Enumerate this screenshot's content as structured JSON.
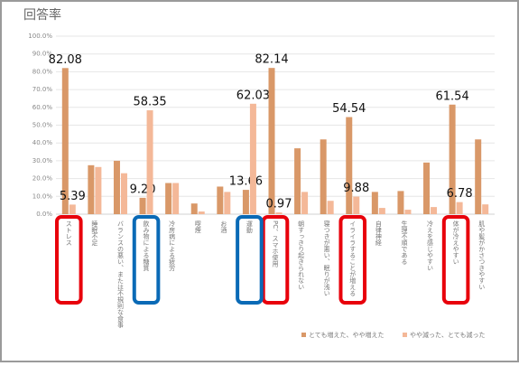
{
  "chart_data": {
    "type": "bar",
    "title": "回答率",
    "categories": [
      "ストレス",
      "睡眠不足",
      "バランスの悪い、または不規則な食事",
      "飲み物による糖質",
      "冷房病による疲労",
      "喫煙",
      "お酒",
      "運動",
      "PC、スマホ使用",
      "朝すっきり起きられない",
      "寝つきが悪い、眠りが浅い",
      "イライラすることが増える",
      "自律神経",
      "生理不順である",
      "冷えを感じやすい",
      "体が冷えやすい",
      "肌や髪がかさつきやすい"
    ],
    "series": [
      {
        "name": "とても増えた、やや増えた",
        "color": "#d99868",
        "values": [
          82.08,
          27.5,
          30,
          9.2,
          17.5,
          6,
          15.5,
          13.66,
          82.14,
          37,
          42,
          54.54,
          12.5,
          13,
          29,
          61.54,
          42
        ],
        "value_labels": [
          "82.08",
          null,
          null,
          "9.20",
          null,
          null,
          null,
          "13.66",
          "82.14",
          null,
          null,
          "54.54",
          null,
          null,
          null,
          "61.54",
          null
        ]
      },
      {
        "name": "やや減った、とても減った",
        "color": "#f4b898",
        "values": [
          5.39,
          26.5,
          23,
          58.35,
          17.5,
          1.5,
          12.5,
          62.03,
          0.97,
          12.5,
          7.5,
          9.88,
          3.5,
          2.5,
          4,
          6.78,
          5.5
        ],
        "value_labels": [
          "5.39",
          null,
          null,
          "58.35",
          null,
          null,
          null,
          "62.03",
          "0.97",
          null,
          null,
          "9.88",
          null,
          null,
          null,
          "6.78",
          null
        ]
      }
    ],
    "ylim": [
      0,
      100
    ],
    "yticks": [
      {
        "value": 0,
        "label": "0.0%"
      },
      {
        "value": 10,
        "label": "10.0%"
      },
      {
        "value": 20,
        "label": "20.0%"
      },
      {
        "value": 30,
        "label": "30.0%"
      },
      {
        "value": 40,
        "label": "40.0%"
      },
      {
        "value": 50,
        "label": "50.0%"
      },
      {
        "value": 60,
        "label": "60.0%"
      },
      {
        "value": 70,
        "label": "70.0%"
      },
      {
        "value": 80,
        "label": "80.0%"
      },
      {
        "value": 90,
        "label": "90.0%"
      },
      {
        "value": 100,
        "label": "100.0%"
      }
    ],
    "grid": true,
    "legend": "bottom-right"
  }
}
